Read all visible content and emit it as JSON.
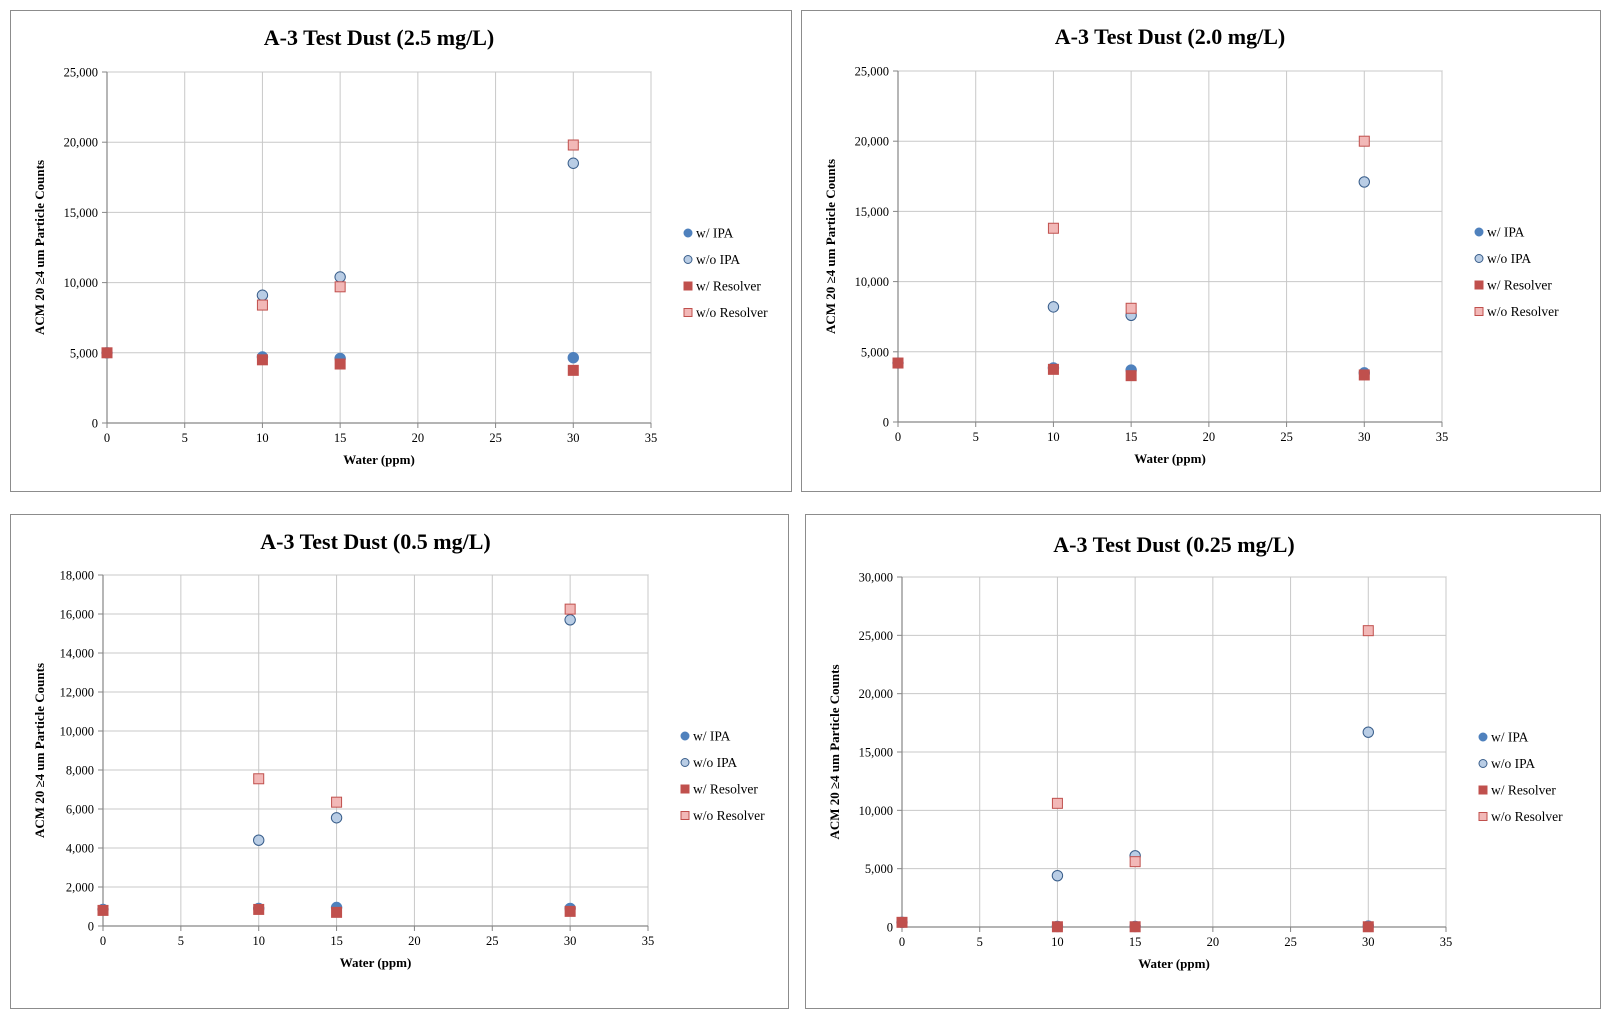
{
  "chart_data": [
    {
      "type": "scatter",
      "title": "A-3 Test Dust (2.5 mg/L)",
      "xlabel": "Water (ppm)",
      "ylabel": "ACM 20 ≥4 um Particle Counts",
      "xlim": [
        0,
        35
      ],
      "ylim": [
        0,
        25000
      ],
      "xticks": [
        0,
        5,
        10,
        15,
        20,
        25,
        30,
        35
      ],
      "yticks": [
        0,
        5000,
        10000,
        15000,
        20000,
        25000
      ],
      "xtick_labels": [
        "0",
        "5",
        "10",
        "15",
        "20",
        "25",
        "30",
        "35"
      ],
      "ytick_labels": [
        "0",
        "5,000",
        "10,000",
        "15,000",
        "20,000",
        "25,000"
      ],
      "grid": true,
      "legend_position": "right",
      "series": [
        {
          "name": "w/ IPA",
          "marker": "circle",
          "fill": "#4f81bd",
          "stroke": "#4f81bd",
          "points": [
            [
              0,
              5000
            ],
            [
              10,
              4700
            ],
            [
              15,
              4600
            ],
            [
              30,
              4650
            ]
          ]
        },
        {
          "name": "w/o IPA",
          "marker": "circle",
          "fill": "#b9cde5",
          "stroke": "#385d8a",
          "points": [
            [
              10,
              9100
            ],
            [
              15,
              10400
            ],
            [
              30,
              18500
            ]
          ]
        },
        {
          "name": "w/ Resolver",
          "marker": "square",
          "fill": "#c0504d",
          "stroke": "#c0504d",
          "points": [
            [
              0,
              5000
            ],
            [
              10,
              4500
            ],
            [
              15,
              4200
            ],
            [
              30,
              3750
            ]
          ]
        },
        {
          "name": "w/o Resolver",
          "marker": "square",
          "fill": "#f2b8b7",
          "stroke": "#c0504d",
          "points": [
            [
              10,
              8400
            ],
            [
              15,
              9700
            ],
            [
              30,
              19800
            ]
          ]
        }
      ]
    },
    {
      "type": "scatter",
      "title": "A-3 Test Dust (2.0 mg/L)",
      "xlabel": "Water (ppm)",
      "ylabel": "ACM 20 ≥4 um Particle Counts",
      "xlim": [
        0,
        35
      ],
      "ylim": [
        0,
        25000
      ],
      "xticks": [
        0,
        5,
        10,
        15,
        20,
        25,
        30,
        35
      ],
      "yticks": [
        0,
        5000,
        10000,
        15000,
        20000,
        25000
      ],
      "xtick_labels": [
        "0",
        "5",
        "10",
        "15",
        "20",
        "25",
        "30",
        "35"
      ],
      "ytick_labels": [
        "0",
        "5,000",
        "10,000",
        "15,000",
        "20,000",
        "25,000"
      ],
      "grid": true,
      "legend_position": "right",
      "series": [
        {
          "name": "w/ IPA",
          "marker": "circle",
          "fill": "#4f81bd",
          "stroke": "#4f81bd",
          "points": [
            [
              0,
              4200
            ],
            [
              10,
              3850
            ],
            [
              15,
              3700
            ],
            [
              30,
              3500
            ]
          ]
        },
        {
          "name": "w/o IPA",
          "marker": "circle",
          "fill": "#b9cde5",
          "stroke": "#385d8a",
          "points": [
            [
              10,
              8200
            ],
            [
              15,
              7600
            ],
            [
              30,
              17100
            ]
          ]
        },
        {
          "name": "w/ Resolver",
          "marker": "square",
          "fill": "#c0504d",
          "stroke": "#c0504d",
          "points": [
            [
              0,
              4200
            ],
            [
              10,
              3750
            ],
            [
              15,
              3300
            ],
            [
              30,
              3350
            ]
          ]
        },
        {
          "name": "w/o Resolver",
          "marker": "square",
          "fill": "#f2b8b7",
          "stroke": "#c0504d",
          "points": [
            [
              10,
              13800
            ],
            [
              15,
              8100
            ],
            [
              30,
              20000
            ]
          ]
        }
      ]
    },
    {
      "type": "scatter",
      "title": "A-3 Test Dust (0.5 mg/L)",
      "xlabel": "Water (ppm)",
      "ylabel": "ACM 20 ≥4 um Particle Counts",
      "xlim": [
        0,
        35
      ],
      "ylim": [
        0,
        18000
      ],
      "xticks": [
        0,
        5,
        10,
        15,
        20,
        25,
        30,
        35
      ],
      "yticks": [
        0,
        2000,
        4000,
        6000,
        8000,
        10000,
        12000,
        14000,
        16000,
        18000
      ],
      "xtick_labels": [
        "0",
        "5",
        "10",
        "15",
        "20",
        "25",
        "30",
        "35"
      ],
      "ytick_labels": [
        "0",
        "2,000",
        "4,000",
        "6,000",
        "8,000",
        "10,000",
        "12,000",
        "14,000",
        "16,000",
        "18,000"
      ],
      "grid": true,
      "legend_position": "right",
      "series": [
        {
          "name": "w/ IPA",
          "marker": "circle",
          "fill": "#4f81bd",
          "stroke": "#4f81bd",
          "points": [
            [
              0,
              850
            ],
            [
              10,
              900
            ],
            [
              15,
              950
            ],
            [
              30,
              900
            ]
          ]
        },
        {
          "name": "w/o IPA",
          "marker": "circle",
          "fill": "#b9cde5",
          "stroke": "#385d8a",
          "points": [
            [
              10,
              4400
            ],
            [
              15,
              5550
            ],
            [
              30,
              15700
            ]
          ]
        },
        {
          "name": "w/ Resolver",
          "marker": "square",
          "fill": "#c0504d",
          "stroke": "#c0504d",
          "points": [
            [
              0,
              800
            ],
            [
              10,
              850
            ],
            [
              15,
              700
            ],
            [
              30,
              750
            ]
          ]
        },
        {
          "name": "w/o Resolver",
          "marker": "square",
          "fill": "#f2b8b7",
          "stroke": "#c0504d",
          "points": [
            [
              10,
              7550
            ],
            [
              15,
              6350
            ],
            [
              30,
              16250
            ]
          ]
        }
      ]
    },
    {
      "type": "scatter",
      "title": "A-3 Test Dust (0.25 mg/L)",
      "xlabel": "Water (ppm)",
      "ylabel": "ACM 20 ≥4 um Particle Counts",
      "xlim": [
        0,
        35
      ],
      "ylim": [
        0,
        30000
      ],
      "xticks": [
        0,
        5,
        10,
        15,
        20,
        25,
        30,
        35
      ],
      "yticks": [
        0,
        5000,
        10000,
        15000,
        20000,
        25000,
        30000
      ],
      "xtick_labels": [
        "0",
        "5",
        "10",
        "15",
        "20",
        "25",
        "30",
        "35"
      ],
      "ytick_labels": [
        "0",
        "5,000",
        "10,000",
        "15,000",
        "20,000",
        "25,000",
        "30,000"
      ],
      "grid": true,
      "legend_position": "right",
      "series": [
        {
          "name": "w/ IPA",
          "marker": "circle",
          "fill": "#4f81bd",
          "stroke": "#4f81bd",
          "points": [
            [
              0,
              400
            ],
            [
              10,
              50
            ],
            [
              15,
              50
            ],
            [
              30,
              80
            ]
          ]
        },
        {
          "name": "w/o IPA",
          "marker": "circle",
          "fill": "#b9cde5",
          "stroke": "#385d8a",
          "points": [
            [
              10,
              4400
            ],
            [
              15,
              6100
            ],
            [
              30,
              16700
            ]
          ]
        },
        {
          "name": "w/ Resolver",
          "marker": "square",
          "fill": "#c0504d",
          "stroke": "#c0504d",
          "points": [
            [
              0,
              400
            ],
            [
              10,
              20
            ],
            [
              15,
              20
            ],
            [
              30,
              20
            ]
          ]
        },
        {
          "name": "w/o Resolver",
          "marker": "square",
          "fill": "#f2b8b7",
          "stroke": "#c0504d",
          "points": [
            [
              10,
              10600
            ],
            [
              15,
              5600
            ],
            [
              30,
              25400
            ]
          ]
        }
      ]
    }
  ]
}
